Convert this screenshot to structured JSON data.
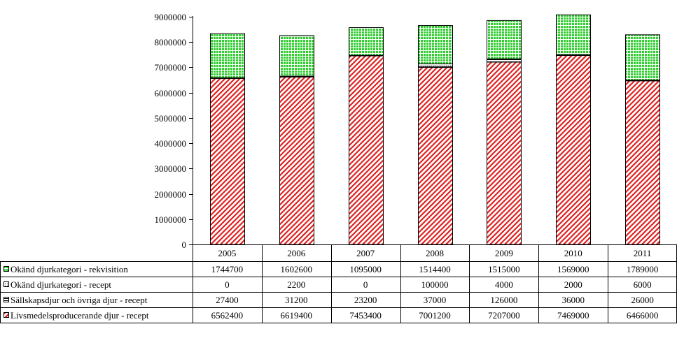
{
  "chart_data": {
    "type": "bar",
    "stacked": true,
    "categories": [
      "2005",
      "2006",
      "2007",
      "2008",
      "2009",
      "2010",
      "2011"
    ],
    "ylim": [
      0,
      9000000
    ],
    "yticks": [
      "0",
      "1000000",
      "2000000",
      "3000000",
      "4000000",
      "5000000",
      "6000000",
      "7000000",
      "8000000",
      "9000000"
    ],
    "grid": false,
    "legend_placement": "data-table-left",
    "series": [
      {
        "name": "Livsmedelsproducerande djur - recept",
        "values": [
          6562400,
          6619400,
          7453400,
          7001200,
          7207000,
          7469000,
          6466000
        ],
        "labels": [
          "6562400",
          "6619400",
          "7453400",
          "7001200",
          "7207000",
          "7469000",
          "6466000"
        ],
        "pattern": "red-diagonal-stripes",
        "color": "#e02020"
      },
      {
        "name": "Sällskapsdjur och övriga djur - recept",
        "values": [
          27400,
          31200,
          23200,
          37000,
          126000,
          36000,
          26000
        ],
        "labels": [
          "27400",
          "31200",
          "23200",
          "37000",
          "126000",
          "36000",
          "26000"
        ],
        "pattern": "horizontal-lines",
        "color": "#000000"
      },
      {
        "name": "Okänd djurkategori - recept",
        "values": [
          0,
          2200,
          0,
          100000,
          4000,
          2000,
          6000
        ],
        "labels": [
          "0",
          "2200",
          "0",
          "100000",
          "4000",
          "2000",
          "6000"
        ],
        "pattern": "dotted",
        "color": "#000000"
      },
      {
        "name": "Okänd djurkategori - rekvisition",
        "values": [
          1744700,
          1602600,
          1095000,
          1514400,
          1515000,
          1569000,
          1789000
        ],
        "labels": [
          "1744700",
          "1602600",
          "1095000",
          "1514400",
          "1515000",
          "1569000",
          "1789000"
        ],
        "pattern": "green-grid",
        "color": "#33cc33"
      }
    ]
  }
}
